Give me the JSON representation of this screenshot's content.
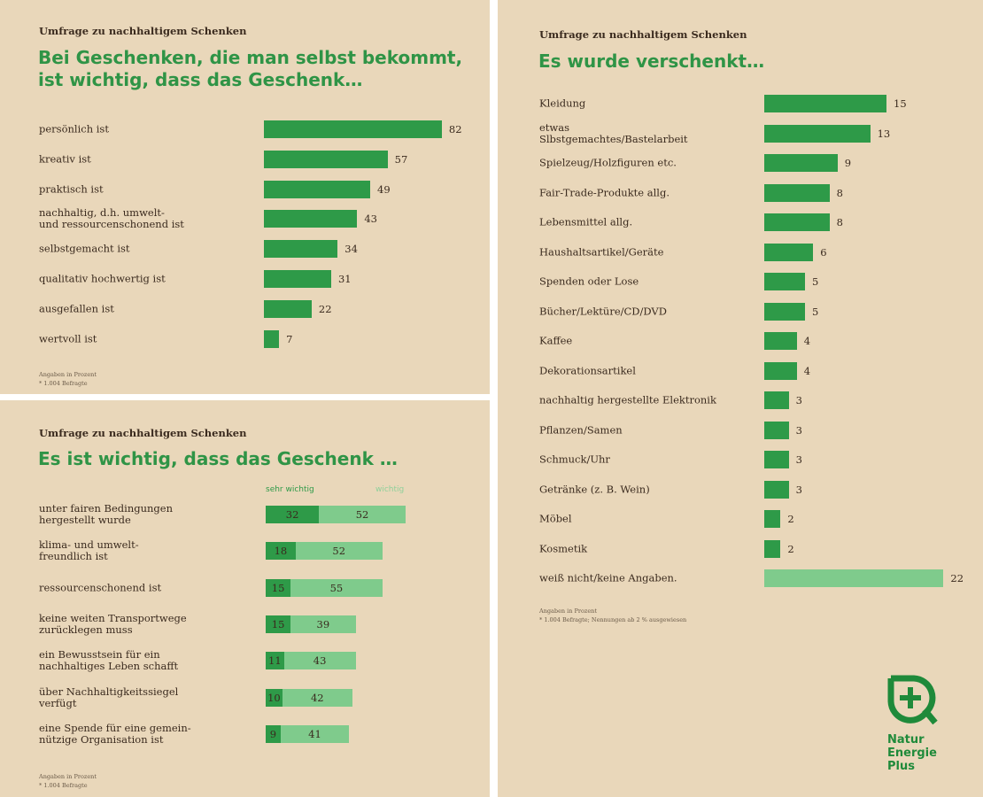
{
  "colors": {
    "dark": "#2e9a48",
    "light": "#7fcb8c",
    "background": "#e9d7ba",
    "title": "#2f9446"
  },
  "chart_data": [
    {
      "type": "bar",
      "orientation": "horizontal",
      "kicker": "Umfrage zu nachhaltigem Schenken",
      "title": "Bei Geschenken, die man selbst bekommt,\nist wichtig, dass das Geschenk…",
      "categories": [
        "persönlich ist",
        "kreativ ist",
        "praktisch ist",
        "nachhaltig, d.h. umwelt-\nund ressourcenschonend ist",
        "selbstgemacht ist",
        "qualitativ hochwertig ist",
        "ausgefallen ist",
        "wertvoll ist"
      ],
      "values": [
        82,
        57,
        49,
        43,
        34,
        31,
        22,
        7
      ],
      "footnote": "Angaben in Prozent\n* 1.004 Befragte"
    },
    {
      "type": "bar",
      "orientation": "horizontal",
      "stacked": true,
      "kicker": "Umfrage zu nachhaltigem Schenken",
      "title": "Es ist wichtig, dass das Geschenk …",
      "categories": [
        "unter fairen Bedingungen\nhergestellt wurde",
        "klima- und umwelt-\nfreundlich ist",
        "ressourcenschonend ist",
        "keine weiten Transportwege\nzurücklegen muss",
        "ein Bewusstsein für ein\nnachhaltiges Leben schafft",
        "über Nachhaltigkeitssiegel\nverfügt",
        "eine Spende für eine gemein-\nnützige Organisation ist"
      ],
      "series": [
        {
          "name": "sehr wichtig",
          "values": [
            32,
            18,
            15,
            15,
            11,
            10,
            9
          ]
        },
        {
          "name": "wichtig",
          "values": [
            52,
            52,
            55,
            39,
            43,
            42,
            41
          ]
        }
      ],
      "footnote": "Angaben in Prozent\n* 1.004 Befragte"
    },
    {
      "type": "bar",
      "orientation": "horizontal",
      "kicker": "Umfrage zu nachhaltigem Schenken",
      "title": "Es wurde verschenkt…",
      "categories": [
        "Kleidung",
        "etwas\nSlbstgemachtes/Bastelarbeit",
        "Spielzeug/Holzfiguren etc.",
        "Fair-Trade-Produkte allg.",
        "Lebensmittel allg.",
        "Haushaltsartikel/Geräte",
        "Spenden oder Lose",
        "Bücher/Lektüre/CD/DVD",
        "Kaffee",
        "Dekorationsartikel",
        "nachhaltig hergestellte Elektronik",
        "Pflanzen/Samen",
        "Schmuck/Uhr",
        "Getränke (z. B. Wein)",
        "Möbel",
        "Kosmetik",
        "weiß nicht/keine Angaben."
      ],
      "values": [
        15,
        13,
        9,
        8,
        8,
        6,
        5,
        5,
        4,
        4,
        3,
        3,
        3,
        3,
        2,
        2,
        22
      ],
      "footnote": "Angaben in Prozent\n* 1.004 Befragte; Nennungen ab 2 % ausgewiesen"
    }
  ],
  "logo": {
    "text": "Natur\nEnergie\nPlus"
  }
}
